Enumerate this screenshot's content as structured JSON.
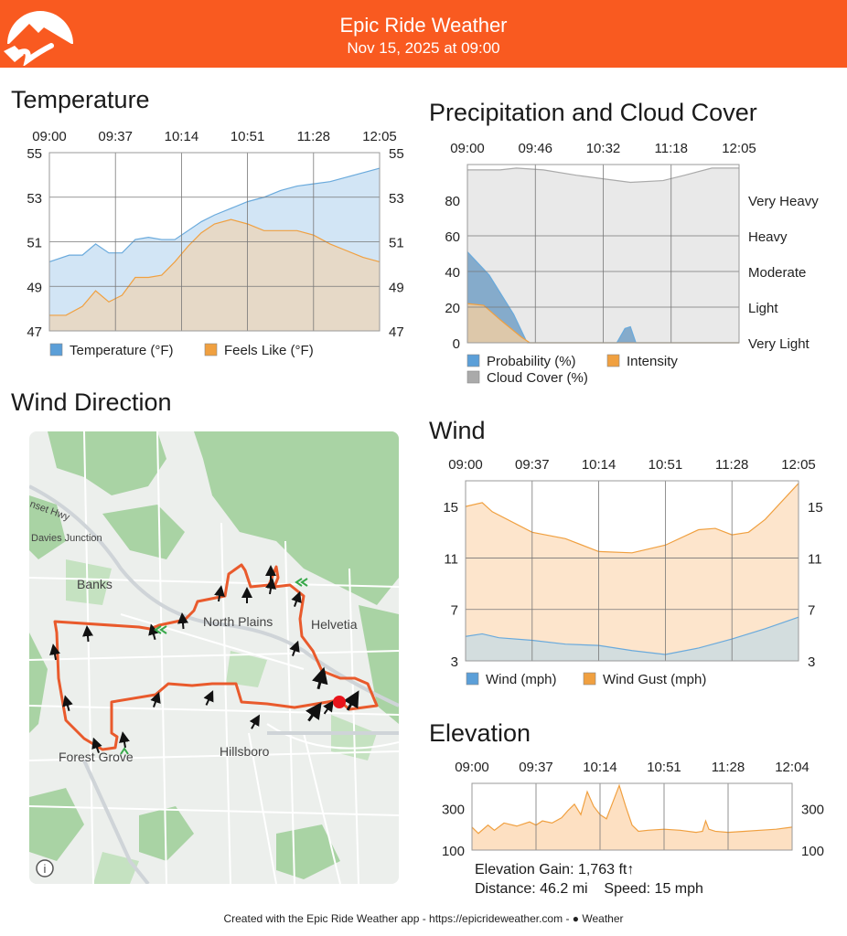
{
  "header": {
    "title": "Epic Ride Weather",
    "subtitle": "Nov 15, 2025 at 09:00",
    "color": "#f95a20",
    "logo_icon": "mountain-road-logo"
  },
  "temperature": {
    "title": "Temperature",
    "chart_data": {
      "type": "area",
      "x_ticks": [
        "09:00",
        "09:37",
        "10:14",
        "10:51",
        "11:28",
        "12:05"
      ],
      "y_ticks": [
        "55",
        "53",
        "51",
        "49",
        "47"
      ],
      "ylim": [
        47,
        55
      ],
      "grid": true,
      "legend_placement": "bottom",
      "series": [
        {
          "name": "Temperature (°F)",
          "color": "#6aaadc",
          "fill": "#d2e5f5",
          "x": [
            0,
            0.06,
            0.1,
            0.14,
            0.18,
            0.22,
            0.26,
            0.3,
            0.34,
            0.38,
            0.42,
            0.46,
            0.5,
            0.55,
            0.6,
            0.65,
            0.7,
            0.75,
            0.8,
            0.85,
            0.9,
            0.95,
            1.0
          ],
          "values": [
            50.1,
            50.4,
            50.4,
            50.9,
            50.5,
            50.5,
            51.1,
            51.2,
            51.1,
            51.1,
            51.5,
            51.9,
            52.2,
            52.5,
            52.8,
            53.0,
            53.3,
            53.5,
            53.6,
            53.7,
            53.9,
            54.1,
            54.3
          ]
        },
        {
          "name": "Feels Like (°F)",
          "color": "#f0a040",
          "fill": "#e6d9c7",
          "x": [
            0,
            0.05,
            0.1,
            0.14,
            0.18,
            0.22,
            0.26,
            0.3,
            0.34,
            0.38,
            0.42,
            0.46,
            0.5,
            0.55,
            0.6,
            0.65,
            0.7,
            0.75,
            0.8,
            0.85,
            0.9,
            0.95,
            1.0
          ],
          "values": [
            47.7,
            47.7,
            48.1,
            48.8,
            48.3,
            48.6,
            49.4,
            49.4,
            49.5,
            50.1,
            50.8,
            51.4,
            51.8,
            52.0,
            51.8,
            51.5,
            51.5,
            51.5,
            51.3,
            50.9,
            50.6,
            50.3,
            50.1
          ]
        }
      ]
    }
  },
  "precipitation": {
    "title": "Precipitation and Cloud Cover",
    "chart_data": {
      "type": "area",
      "x_ticks": [
        "09:00",
        "09:46",
        "10:32",
        "11:18",
        "12:05"
      ],
      "y_ticks_left": [
        "80",
        "60",
        "40",
        "20",
        "0"
      ],
      "y_ticks_right": [
        "Very Heavy",
        "Heavy",
        "Moderate",
        "Light",
        "Very Light"
      ],
      "ylim": [
        0,
        100
      ],
      "grid": true,
      "legend_placement": "bottom",
      "series": [
        {
          "name": "Probability (%)",
          "color": "#6aaadc",
          "fill": "#7fa8c9",
          "x": [
            0,
            0.08,
            0.17,
            0.22,
            0.24,
            0.55,
            0.58,
            0.6,
            0.62,
            1.0
          ],
          "values": [
            51,
            38,
            16,
            0,
            0,
            0,
            8,
            9,
            0,
            0
          ]
        },
        {
          "name": "Intensity",
          "color": "#f0a040",
          "fill": "#e2c9a8",
          "x": [
            0,
            0.06,
            0.12,
            0.2,
            0.23,
            1.0
          ],
          "values": [
            22,
            21,
            13,
            3,
            0,
            0
          ]
        },
        {
          "name": "Cloud Cover (%)",
          "color": "#aaaaaa",
          "fill": "#e8e8e8",
          "x": [
            0,
            0.12,
            0.18,
            0.28,
            0.4,
            0.5,
            0.6,
            0.72,
            0.8,
            0.9,
            1.0
          ],
          "values": [
            97,
            97,
            98,
            97,
            94,
            92,
            90,
            91,
            94,
            98,
            98
          ]
        }
      ]
    }
  },
  "wind_direction": {
    "title": "Wind Direction",
    "map": {
      "labels": [
        "Banks",
        "North Plains",
        "Helvetia",
        "Forest Grove",
        "Hillsboro",
        "Davies Junction",
        "nset Hwy"
      ],
      "info_icon": "info-icon",
      "marker_icon": "current-position-marker",
      "arrow_icon": "wind-arrow-icon",
      "route_color": "#e95a2c",
      "marker_color": "#e8141b"
    }
  },
  "wind": {
    "title": "Wind",
    "chart_data": {
      "type": "area",
      "x_ticks": [
        "09:00",
        "09:37",
        "10:14",
        "10:51",
        "11:28",
        "12:05"
      ],
      "y_ticks": [
        "15",
        "11",
        "7",
        "3"
      ],
      "ylim": [
        3,
        17
      ],
      "grid": true,
      "legend_placement": "bottom",
      "series": [
        {
          "name": "Wind (mph)",
          "color": "#6aaadc",
          "fill": "#d3ddde",
          "x": [
            0,
            0.05,
            0.1,
            0.2,
            0.3,
            0.4,
            0.5,
            0.6,
            0.7,
            0.8,
            0.9,
            1.0
          ],
          "values": [
            4.9,
            5.1,
            4.8,
            4.6,
            4.3,
            4.2,
            3.8,
            3.5,
            4.0,
            4.7,
            5.5,
            6.4
          ]
        },
        {
          "name": "Wind Gust (mph)",
          "color": "#f0a040",
          "fill": "#fde5cc",
          "x": [
            0,
            0.05,
            0.08,
            0.2,
            0.3,
            0.4,
            0.5,
            0.6,
            0.7,
            0.75,
            0.8,
            0.85,
            0.9,
            1.0
          ],
          "values": [
            15.0,
            15.3,
            14.6,
            13.0,
            12.5,
            11.5,
            11.4,
            12.0,
            13.2,
            13.3,
            12.8,
            13.0,
            14.0,
            16.8
          ]
        }
      ]
    }
  },
  "elevation": {
    "title": "Elevation",
    "chart_data": {
      "type": "area",
      "x_ticks": [
        "09:00",
        "09:37",
        "10:14",
        "10:51",
        "11:28",
        "12:04"
      ],
      "y_ticks": [
        "300",
        "100"
      ],
      "ylim": [
        100,
        420
      ],
      "grid": true,
      "series": [
        {
          "name": "",
          "color": "#f0a040",
          "fill": "#fde0c2",
          "x": [
            0,
            0.02,
            0.05,
            0.07,
            0.1,
            0.14,
            0.18,
            0.2,
            0.22,
            0.25,
            0.28,
            0.3,
            0.32,
            0.34,
            0.36,
            0.38,
            0.4,
            0.42,
            0.44,
            0.46,
            0.48,
            0.5,
            0.52,
            0.55,
            0.6,
            0.65,
            0.7,
            0.72,
            0.73,
            0.74,
            0.76,
            0.8,
            0.85,
            0.9,
            0.95,
            1.0
          ],
          "values": [
            210,
            180,
            220,
            195,
            230,
            215,
            235,
            220,
            240,
            230,
            255,
            290,
            320,
            270,
            380,
            310,
            270,
            250,
            330,
            410,
            310,
            220,
            190,
            195,
            200,
            195,
            185,
            190,
            240,
            200,
            190,
            185,
            190,
            195,
            200,
            210
          ]
        }
      ]
    }
  },
  "stats": {
    "gain": "Elevation Gain: 1,763 ft↑",
    "distance": "Distance: 46.2 mi",
    "speed": "Speed: 15 mph"
  },
  "footer": {
    "text": "Created with the Epic Ride Weather app - https://epicrideweather.com - ",
    "brand": "Weather",
    "brand_icon": "apple-icon"
  }
}
